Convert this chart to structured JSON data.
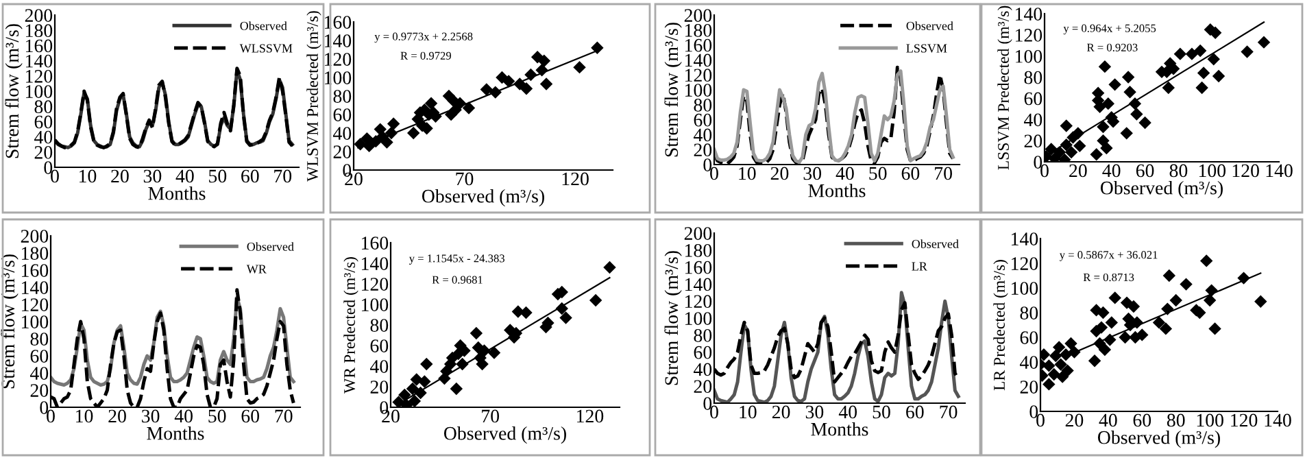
{
  "chart_data": [
    {
      "type": "line",
      "xlabel": "Months",
      "ylabel": "Strem flow (m³/s)",
      "x": [
        0,
        1,
        2,
        3,
        4,
        5,
        6,
        7,
        8,
        9,
        10,
        11,
        12,
        13,
        14,
        15,
        16,
        17,
        18,
        19,
        20,
        21,
        22,
        23,
        24,
        25,
        26,
        27,
        28,
        29,
        30,
        31,
        32,
        33,
        34,
        35,
        36,
        37,
        38,
        39,
        40,
        41,
        42,
        43,
        44,
        45,
        46,
        47,
        48,
        49,
        50,
        51,
        52,
        53,
        54,
        55,
        56,
        57,
        58,
        59,
        60,
        61,
        62,
        63,
        64,
        65,
        66,
        67,
        68,
        69,
        70,
        71,
        72,
        73
      ],
      "xlim": [
        0,
        75
      ],
      "xticks": [
        0,
        10,
        20,
        30,
        40,
        50,
        60,
        70
      ],
      "ylim": [
        0,
        200
      ],
      "yticks": [
        0,
        20,
        40,
        60,
        80,
        100,
        120,
        140,
        160,
        180,
        200
      ],
      "legend": "top right",
      "series": [
        {
          "name": "Observed",
          "color": "#333333",
          "line_style": "solid",
          "values": [
            35,
            30,
            28,
            27,
            26,
            28,
            32,
            45,
            70,
            98,
            90,
            55,
            35,
            30,
            28,
            26,
            27,
            30,
            45,
            75,
            90,
            95,
            70,
            40,
            32,
            28,
            27,
            35,
            50,
            60,
            55,
            75,
            105,
            112,
            95,
            60,
            35,
            30,
            30,
            32,
            35,
            40,
            55,
            70,
            82,
            80,
            60,
            35,
            30,
            28,
            30,
            55,
            65,
            55,
            50,
            80,
            128,
            115,
            70,
            35,
            30,
            30,
            32,
            33,
            35,
            45,
            60,
            70,
            90,
            115,
            105,
            70,
            35,
            30
          ]
        },
        {
          "name": "WLSSVM",
          "color": "#000000",
          "line_style": "dashed",
          "values": [
            36,
            31,
            28,
            26,
            26,
            29,
            33,
            47,
            72,
            100,
            88,
            53,
            34,
            29,
            27,
            26,
            28,
            31,
            47,
            78,
            92,
            97,
            68,
            38,
            30,
            27,
            26,
            38,
            52,
            62,
            52,
            78,
            108,
            113,
            92,
            58,
            34,
            29,
            30,
            33,
            36,
            42,
            57,
            72,
            85,
            80,
            58,
            34,
            29,
            27,
            31,
            58,
            72,
            58,
            48,
            82,
            130,
            120,
            68,
            34,
            29,
            30,
            31,
            34,
            37,
            47,
            62,
            72,
            92,
            118,
            100,
            68,
            33,
            28
          ]
        }
      ]
    },
    {
      "type": "scatter",
      "xlabel": "Observed (m³/s)",
      "ylabel": "WLSVM Predected (m³/s)",
      "xlim": [
        20,
        137
      ],
      "xticks": [
        20,
        70,
        120
      ],
      "ylim": [
        0,
        160
      ],
      "yticks": [
        0,
        20,
        40,
        60,
        80,
        100,
        120,
        140,
        160
      ],
      "annotations": [
        "y = 0.9773x + 2.2568",
        "R = 0.9729"
      ],
      "series": [
        {
          "color": "#000000",
          "marker": "diamond",
          "x": [
            23,
            26,
            27,
            30,
            32,
            33,
            35,
            37,
            38,
            47,
            49,
            50,
            51,
            52,
            53,
            54,
            55,
            56,
            57,
            63,
            64,
            65,
            66,
            68,
            72,
            80,
            84,
            87,
            90,
            95,
            98,
            100,
            103,
            105,
            106,
            107,
            122,
            130
          ],
          "values": [
            28,
            34,
            26,
            31,
            44,
            36,
            30,
            40,
            50,
            40,
            55,
            62,
            48,
            65,
            45,
            60,
            72,
            62,
            58,
            80,
            60,
            75,
            65,
            72,
            67,
            87,
            84,
            100,
            96,
            93,
            88,
            103,
            122,
            108,
            118,
            93,
            111,
            132
          ]
        },
        {
          "type": "line",
          "color": "#000000",
          "line_style": "solid",
          "x": [
            22,
            130
          ],
          "values": [
            24,
            129
          ]
        }
      ]
    },
    {
      "type": "line",
      "xlabel": "Months",
      "ylabel": "Strem flow (m³/s)",
      "x": [
        0,
        1,
        2,
        3,
        4,
        5,
        6,
        7,
        8,
        9,
        10,
        11,
        12,
        13,
        14,
        15,
        16,
        17,
        18,
        19,
        20,
        21,
        22,
        23,
        24,
        25,
        26,
        27,
        28,
        29,
        30,
        31,
        32,
        33,
        34,
        35,
        36,
        37,
        38,
        39,
        40,
        41,
        42,
        43,
        44,
        45,
        46,
        47,
        48,
        49,
        50,
        51,
        52,
        53,
        54,
        55,
        56,
        57,
        58,
        59,
        60,
        61,
        62,
        63,
        64,
        65,
        66,
        67,
        68,
        69,
        70,
        71,
        72,
        73
      ],
      "xlim": [
        0,
        75
      ],
      "xticks": [
        0,
        10,
        20,
        30,
        40,
        50,
        60,
        70
      ],
      "ylim": [
        0,
        200
      ],
      "yticks": [
        0,
        20,
        40,
        60,
        80,
        100,
        120,
        140,
        160,
        180,
        200
      ],
      "legend": "top right",
      "series": [
        {
          "name": "Observed",
          "color": "#000000",
          "line_style": "dashed",
          "values": [
            15,
            5,
            3,
            2,
            1,
            5,
            10,
            25,
            60,
            92,
            85,
            40,
            10,
            3,
            2,
            1,
            3,
            8,
            20,
            50,
            80,
            95,
            70,
            30,
            8,
            3,
            2,
            5,
            25,
            40,
            50,
            60,
            95,
            102,
            80,
            40,
            10,
            5,
            5,
            8,
            12,
            20,
            35,
            55,
            70,
            73,
            55,
            25,
            5,
            2,
            10,
            30,
            35,
            32,
            35,
            70,
            130,
            115,
            65,
            20,
            5,
            5,
            8,
            10,
            15,
            25,
            45,
            65,
            95,
            120,
            100,
            55,
            15,
            8
          ]
        },
        {
          "name": "LSSVM",
          "color": "#999999",
          "line_style": "solid",
          "values": [
            20,
            8,
            6,
            6,
            7,
            10,
            15,
            30,
            70,
            100,
            98,
            55,
            15,
            6,
            5,
            5,
            8,
            15,
            30,
            65,
            100,
            90,
            75,
            40,
            12,
            5,
            3,
            10,
            40,
            52,
            55,
            75,
            110,
            122,
            95,
            50,
            12,
            6,
            5,
            8,
            15,
            25,
            40,
            70,
            90,
            92,
            90,
            55,
            15,
            5,
            15,
            40,
            65,
            60,
            65,
            85,
            120,
            125,
            80,
            25,
            5,
            8,
            10,
            12,
            18,
            30,
            50,
            60,
            80,
            100,
            105,
            65,
            20,
            10
          ]
        }
      ]
    },
    {
      "type": "scatter",
      "xlabel": "Observed (m³/s)",
      "ylabel": "LSSVM Predected (m³/s)",
      "xlim": [
        0,
        140
      ],
      "xticks": [
        0,
        20,
        40,
        60,
        80,
        100,
        120,
        140
      ],
      "ylim": [
        0,
        140
      ],
      "yticks": [
        0,
        20,
        40,
        60,
        80,
        100,
        120,
        140
      ],
      "annotations": [
        "y = 0.964x + 5.2055",
        "R = 0.9203"
      ],
      "series": [
        {
          "color": "#000000",
          "marker": "diamond",
          "x": [
            1,
            4,
            6,
            9,
            12,
            13,
            13,
            16,
            17,
            20,
            21,
            31,
            32,
            32,
            33,
            35,
            35,
            36,
            37,
            38,
            40,
            41,
            42,
            49,
            50,
            51,
            54,
            55,
            60,
            70,
            73,
            74,
            75,
            77,
            81,
            88,
            93,
            94,
            95,
            99,
            101,
            102,
            104,
            121,
            131
          ],
          "values": [
            5,
            12,
            3,
            9,
            2,
            16,
            34,
            9,
            23,
            27,
            15,
            7,
            65,
            58,
            52,
            20,
            33,
            90,
            13,
            55,
            42,
            38,
            73,
            27,
            80,
            66,
            55,
            45,
            37,
            85,
            85,
            70,
            93,
            88,
            102,
            102,
            105,
            70,
            84,
            125,
            97,
            122,
            81,
            104,
            113
          ]
        },
        {
          "type": "line",
          "color": "#000000",
          "line_style": "solid",
          "x": [
            0,
            131
          ],
          "values": [
            5,
            132
          ]
        }
      ]
    },
    {
      "type": "line",
      "xlabel": "Months",
      "ylabel": "Strem flow (m³/s)",
      "x": [
        0,
        1,
        2,
        3,
        4,
        5,
        6,
        7,
        8,
        9,
        10,
        11,
        12,
        13,
        14,
        15,
        16,
        17,
        18,
        19,
        20,
        21,
        22,
        23,
        24,
        25,
        26,
        27,
        28,
        29,
        30,
        31,
        32,
        33,
        34,
        35,
        36,
        37,
        38,
        39,
        40,
        41,
        42,
        43,
        44,
        45,
        46,
        47,
        48,
        49,
        50,
        51,
        52,
        53,
        54,
        55,
        56,
        57,
        58,
        59,
        60,
        61,
        62,
        63,
        64,
        65,
        66,
        67,
        68,
        69,
        70,
        71,
        72,
        73
      ],
      "xlim": [
        0,
        75
      ],
      "xticks": [
        0,
        10,
        20,
        30,
        40,
        50,
        60,
        70
      ],
      "ylim": [
        0,
        200
      ],
      "yticks": [
        0,
        20,
        40,
        60,
        80,
        100,
        120,
        140,
        160,
        180,
        200
      ],
      "legend": "top right",
      "series": [
        {
          "name": "Observed",
          "color": "#777777",
          "line_style": "solid",
          "values": [
            35,
            30,
            28,
            27,
            26,
            28,
            32,
            45,
            70,
            98,
            90,
            55,
            35,
            30,
            28,
            26,
            27,
            30,
            45,
            75,
            90,
            95,
            70,
            40,
            32,
            28,
            27,
            35,
            50,
            60,
            55,
            75,
            105,
            112,
            95,
            60,
            35,
            30,
            30,
            32,
            35,
            40,
            55,
            70,
            82,
            80,
            60,
            35,
            30,
            28,
            30,
            55,
            65,
            55,
            50,
            80,
            128,
            115,
            70,
            35,
            30,
            30,
            32,
            33,
            35,
            45,
            60,
            70,
            90,
            115,
            105,
            70,
            35,
            30
          ]
        },
        {
          "name": "WR",
          "color": "#000000",
          "line_style": "dashed",
          "values": [
            12,
            10,
            0,
            5,
            10,
            12,
            20,
            50,
            80,
            100,
            80,
            30,
            10,
            5,
            0,
            5,
            10,
            20,
            50,
            75,
            88,
            90,
            60,
            20,
            5,
            0,
            0,
            10,
            30,
            45,
            42,
            75,
            100,
            110,
            90,
            45,
            10,
            0,
            0,
            10,
            15,
            20,
            40,
            60,
            72,
            70,
            50,
            15,
            0,
            0,
            10,
            50,
            55,
            30,
            12,
            55,
            137,
            110,
            50,
            10,
            5,
            6,
            10,
            12,
            15,
            25,
            40,
            55,
            80,
            100,
            95,
            50,
            20,
            5
          ]
        }
      ]
    },
    {
      "type": "scatter",
      "xlabel": "Observed (m³/s)",
      "ylabel": "WR Predected (m³/s)",
      "xlim": [
        20,
        135
      ],
      "xticks": [
        20,
        70,
        120
      ],
      "ylim": [
        0,
        160
      ],
      "yticks": [
        0,
        20,
        40,
        60,
        80,
        100,
        120,
        140,
        160
      ],
      "annotations": [
        "y = 1.1545x - 24.383",
        "R = 0.9681"
      ],
      "series": [
        {
          "color": "#000000",
          "marker": "diamond",
          "x": [
            24,
            27,
            28,
            31,
            32,
            33,
            35,
            37,
            38,
            47,
            48,
            50,
            51,
            53,
            54,
            55,
            56,
            57,
            63,
            64,
            65,
            66,
            67,
            72,
            80,
            82,
            83,
            84,
            88,
            98,
            99,
            104,
            106,
            106,
            108,
            123,
            130
          ],
          "values": [
            5,
            12,
            2,
            18,
            6,
            27,
            14,
            25,
            42,
            28,
            35,
            42,
            48,
            18,
            52,
            60,
            42,
            55,
            72,
            58,
            48,
            42,
            55,
            53,
            75,
            68,
            72,
            93,
            92,
            78,
            82,
            110,
            112,
            96,
            87,
            104,
            136
          ]
        },
        {
          "type": "line",
          "color": "#000000",
          "line_style": "solid",
          "x": [
            23,
            130
          ],
          "values": [
            2,
            126
          ]
        }
      ]
    },
    {
      "type": "line",
      "xlabel": "Months",
      "ylabel": "Strem flow (m³/s)",
      "x": [
        0,
        1,
        2,
        3,
        4,
        5,
        6,
        7,
        8,
        9,
        10,
        11,
        12,
        13,
        14,
        15,
        16,
        17,
        18,
        19,
        20,
        21,
        22,
        23,
        24,
        25,
        26,
        27,
        28,
        29,
        30,
        31,
        32,
        33,
        34,
        35,
        36,
        37,
        38,
        39,
        40,
        41,
        42,
        43,
        44,
        45,
        46,
        47,
        48,
        49,
        50,
        51,
        52,
        53,
        54,
        55,
        56,
        57,
        58,
        59,
        60,
        61,
        62,
        63,
        64,
        65,
        66,
        67,
        68,
        69,
        70,
        71,
        72,
        73
      ],
      "xlim": [
        0,
        75
      ],
      "xticks": [
        0,
        10,
        20,
        30,
        40,
        50,
        60,
        70
      ],
      "ylim": [
        0,
        200
      ],
      "yticks": [
        0,
        20,
        40,
        60,
        80,
        100,
        120,
        140,
        160,
        180,
        200
      ],
      "legend": "top right",
      "series": [
        {
          "name": "Observed",
          "color": "#555555",
          "line_style": "solid",
          "values": [
            15,
            5,
            3,
            2,
            1,
            5,
            10,
            25,
            60,
            92,
            85,
            40,
            10,
            3,
            2,
            1,
            3,
            8,
            20,
            50,
            80,
            95,
            70,
            30,
            8,
            3,
            2,
            5,
            25,
            40,
            50,
            60,
            95,
            102,
            80,
            40,
            10,
            5,
            5,
            8,
            12,
            20,
            35,
            55,
            70,
            73,
            55,
            25,
            5,
            2,
            10,
            30,
            35,
            32,
            35,
            70,
            130,
            115,
            65,
            20,
            5,
            5,
            8,
            10,
            15,
            25,
            45,
            65,
            95,
            120,
            100,
            55,
            15,
            8
          ]
        },
        {
          "name": "LR",
          "color": "#000000",
          "line_style": "dashed",
          "values": [
            40,
            35,
            33,
            35,
            42,
            48,
            52,
            60,
            80,
            95,
            85,
            45,
            35,
            35,
            36,
            38,
            45,
            55,
            65,
            78,
            85,
            88,
            70,
            40,
            30,
            32,
            40,
            55,
            70,
            65,
            60,
            70,
            95,
            100,
            90,
            60,
            25,
            30,
            35,
            40,
            48,
            55,
            58,
            65,
            72,
            80,
            75,
            50,
            38,
            36,
            38,
            60,
            72,
            65,
            60,
            80,
            110,
            118,
            80,
            45,
            35,
            28,
            32,
            38,
            45,
            55,
            70,
            85,
            90,
            100,
            105,
            80,
            35,
            28
          ]
        }
      ]
    },
    {
      "type": "scatter",
      "xlabel": "Observed (m³/s)",
      "ylabel": "LR Predected (m³/s)",
      "xlim": [
        0,
        140
      ],
      "xticks": [
        0,
        20,
        40,
        60,
        80,
        100,
        120,
        140
      ],
      "ylim": [
        0,
        140
      ],
      "yticks": [
        0,
        20,
        40,
        60,
        80,
        100,
        120,
        140
      ],
      "annotations": [
        "y = 0.5867x + 36.021",
        "R = 0.8713"
      ],
      "series": [
        {
          "color": "#000000",
          "marker": "diamond",
          "x": [
            0,
            1,
            2,
            5,
            5,
            8,
            9,
            11,
            12,
            13,
            15,
            16,
            18,
            20,
            32,
            33,
            33,
            35,
            36,
            37,
            38,
            41,
            42,
            44,
            50,
            51,
            52,
            53,
            55,
            56,
            57,
            60,
            70,
            74,
            75,
            76,
            80,
            86,
            92,
            94,
            98,
            100,
            101,
            103,
            120,
            130
          ],
          "values": [
            38,
            29,
            46,
            22,
            37,
            30,
            45,
            52,
            38,
            28,
            46,
            33,
            55,
            48,
            41,
            65,
            82,
            55,
            68,
            80,
            50,
            58,
            72,
            92,
            60,
            88,
            75,
            70,
            85,
            60,
            72,
            62,
            72,
            67,
            83,
            110,
            90,
            103,
            82,
            80,
            122,
            90,
            98,
            67,
            108,
            89
          ]
        },
        {
          "type": "line",
          "color": "#000000",
          "line_style": "solid",
          "x": [
            17,
            130
          ],
          "values": [
            46,
            112
          ]
        }
      ]
    }
  ]
}
